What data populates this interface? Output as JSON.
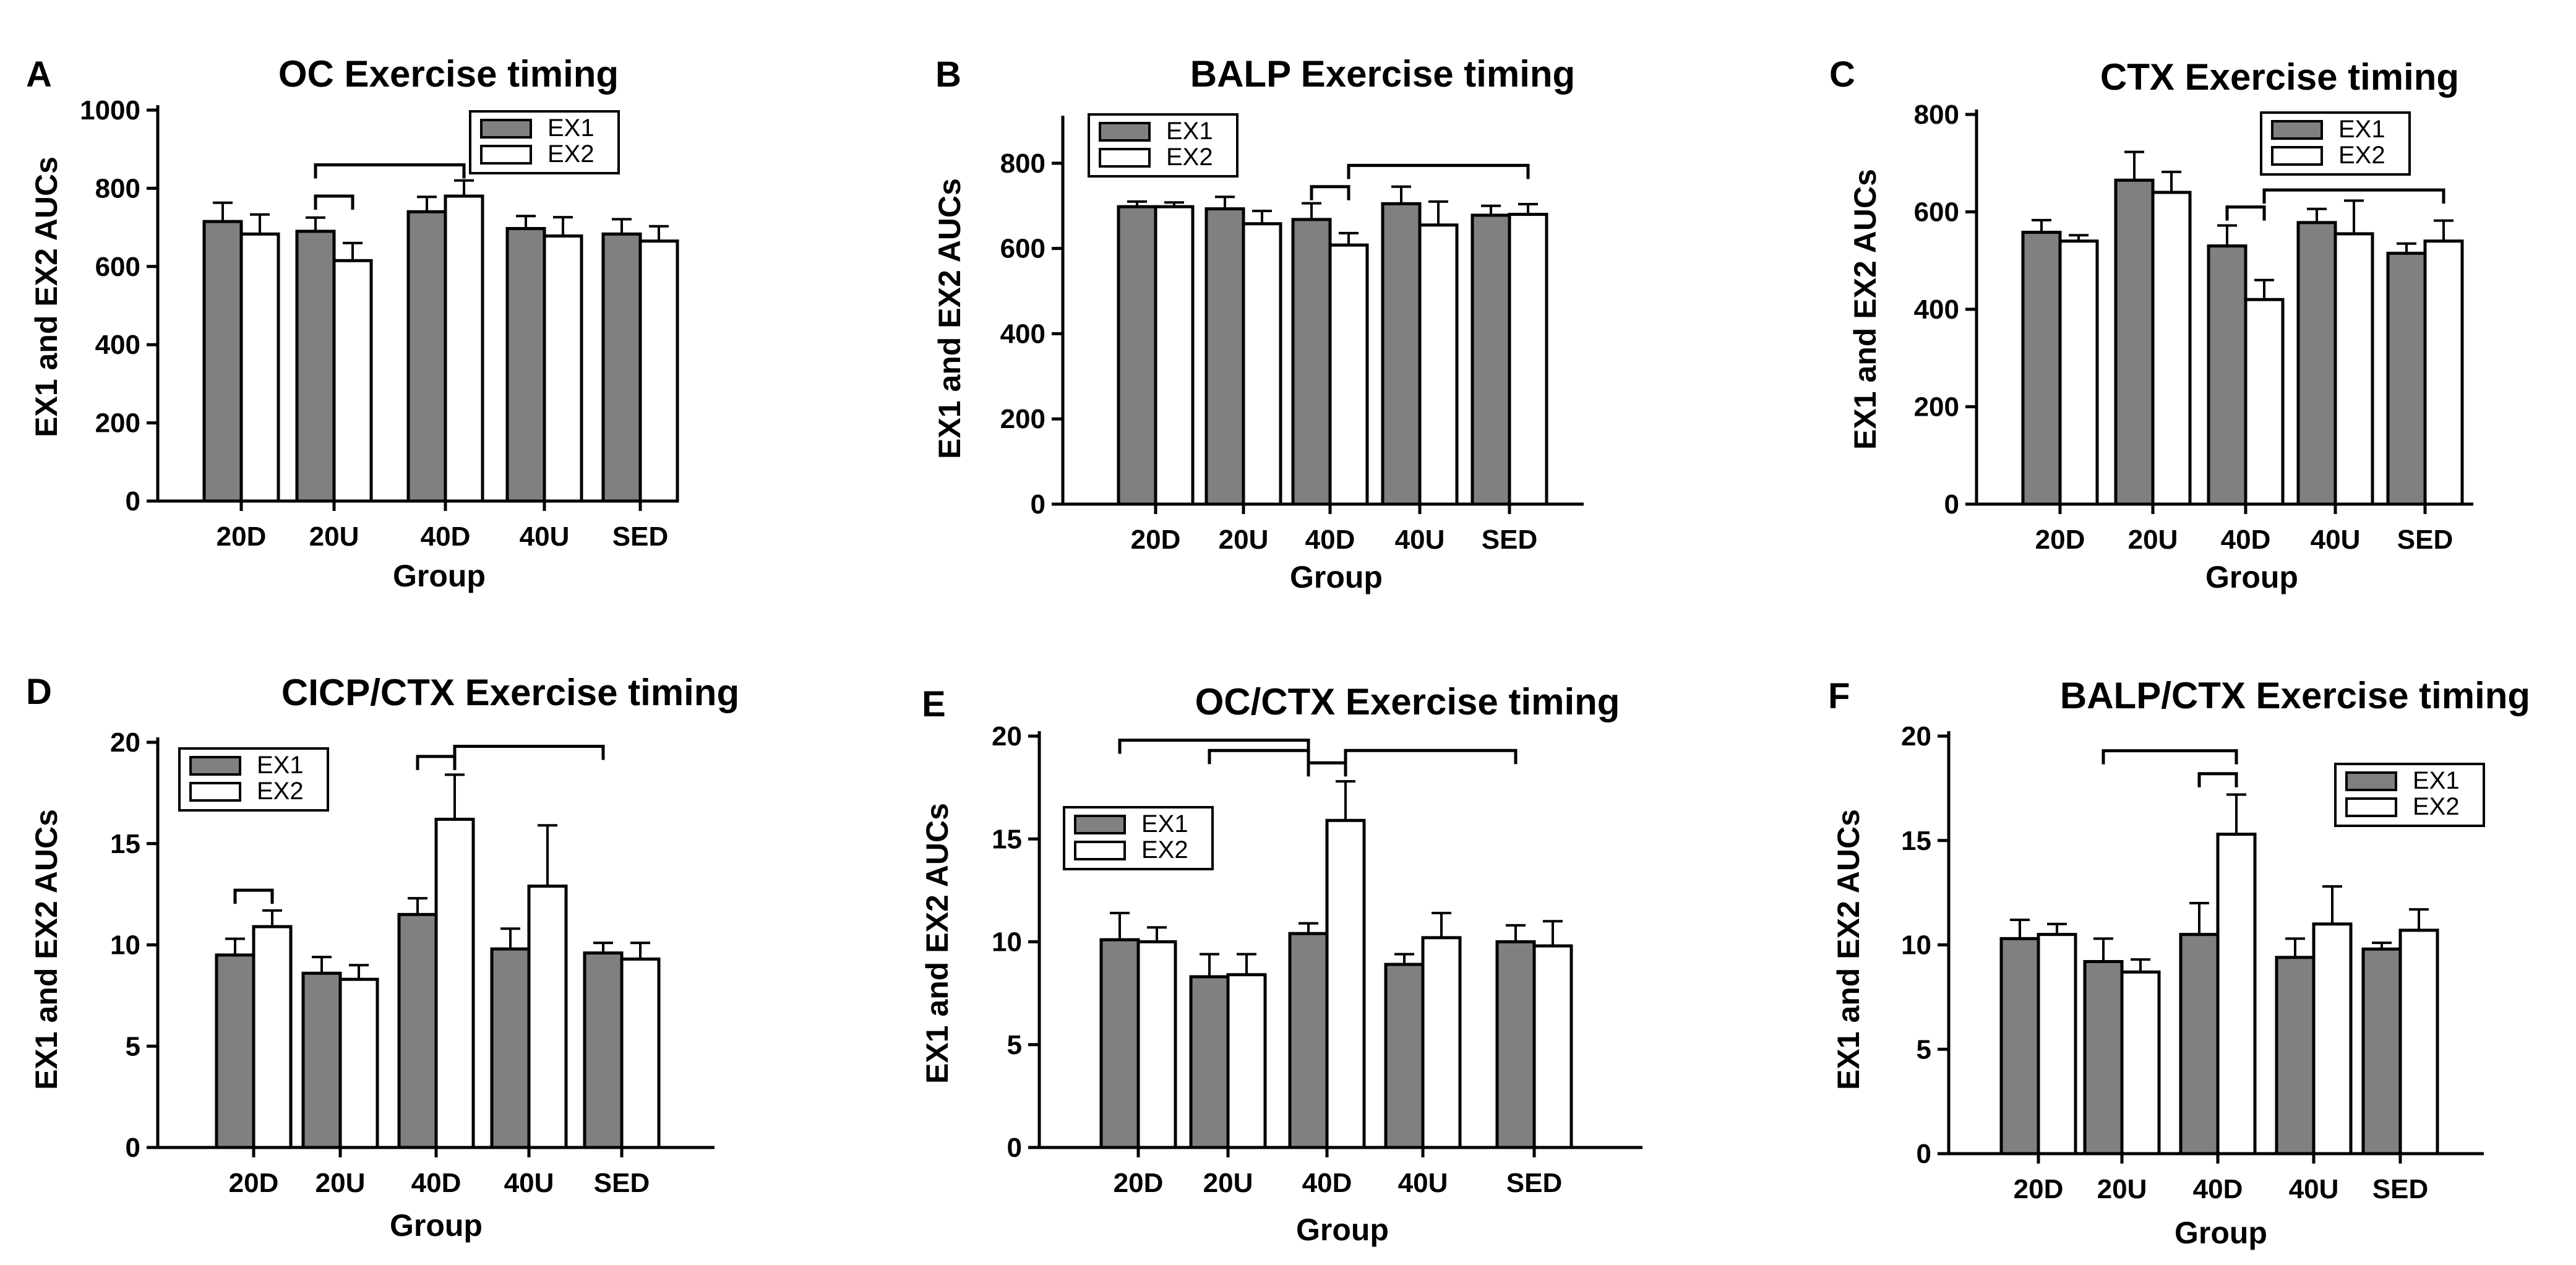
{
  "colors": {
    "ex1_fill": "#808080",
    "ex2_fill": "#ffffff",
    "stroke": "#000000"
  },
  "chart_data": [
    {
      "panel": "A",
      "type": "bar",
      "title": "OC Exercise timing",
      "xlabel": "Group",
      "ylabel": "EX1 and EX2 AUCs",
      "categories": [
        "20D",
        "20U",
        "40D",
        "40U",
        "SED"
      ],
      "ylim": [
        0,
        1000
      ],
      "yticks": [
        0,
        200,
        400,
        600,
        800,
        1000
      ],
      "series": [
        {
          "name": "EX1",
          "values": [
            715,
            690,
            740,
            697,
            683
          ],
          "errors": [
            48,
            35,
            38,
            32,
            38
          ]
        },
        {
          "name": "EX2",
          "values": [
            683,
            615,
            780,
            678,
            665
          ],
          "errors": [
            50,
            45,
            40,
            48,
            38
          ]
        }
      ],
      "brackets": [
        {
          "from": [
            1,
            0
          ],
          "to": [
            1,
            1
          ],
          "y": 780
        },
        {
          "from": [
            1,
            0
          ],
          "to": [
            2,
            1
          ],
          "y": 860
        }
      ],
      "legend_position": "top-right"
    },
    {
      "panel": "B",
      "type": "bar",
      "title": "BALP  Exercise timing",
      "xlabel": "Group",
      "ylabel": "EX1 and EX2 AUCs",
      "categories": [
        "20D",
        "20U",
        "40D",
        "40U",
        "SED"
      ],
      "ylim": [
        0,
        900
      ],
      "yticks": [
        0,
        200,
        400,
        600,
        800
      ],
      "series": [
        {
          "name": "EX1",
          "values": [
            698,
            693,
            668,
            705,
            678
          ],
          "errors": [
            12,
            28,
            38,
            40,
            22
          ]
        },
        {
          "name": "EX2",
          "values": [
            698,
            658,
            608,
            655,
            680
          ],
          "errors": [
            10,
            30,
            28,
            55,
            24
          ]
        }
      ],
      "brackets": [
        {
          "from": [
            2,
            0
          ],
          "to": [
            2,
            1
          ],
          "y": 745
        },
        {
          "from": [
            2,
            1
          ],
          "to": [
            4,
            1
          ],
          "y": 795
        }
      ],
      "legend_position": "top-left"
    },
    {
      "panel": "C",
      "type": "bar",
      "title": "CTX Exercise timing",
      "xlabel": "Group",
      "ylabel": "EX1 and EX2 AUCs",
      "categories": [
        "20D",
        "20U",
        "40D",
        "40U",
        "SED"
      ],
      "ylim": [
        0,
        800
      ],
      "yticks": [
        0,
        200,
        400,
        600,
        800
      ],
      "series": [
        {
          "name": "EX1",
          "values": [
            558,
            665,
            530,
            578,
            515
          ],
          "errors": [
            25,
            58,
            42,
            28,
            20
          ]
        },
        {
          "name": "EX2",
          "values": [
            540,
            640,
            420,
            555,
            540
          ],
          "errors": [
            12,
            42,
            40,
            68,
            42
          ]
        }
      ],
      "brackets": [
        {
          "from": [
            2,
            0
          ],
          "to": [
            2,
            1
          ],
          "y": 610
        },
        {
          "from": [
            2,
            1
          ],
          "to": [
            4,
            1
          ],
          "y": 645
        }
      ],
      "legend_position": "top-right"
    },
    {
      "panel": "D",
      "type": "bar",
      "title": "CICP/CTX Exercise timing",
      "xlabel": "Group",
      "ylabel": "EX1 and EX2 AUCs",
      "categories": [
        "20D",
        "20U",
        "40D",
        "40U",
        "SED"
      ],
      "ylim": [
        0,
        20
      ],
      "yticks": [
        0,
        5,
        10,
        15,
        20
      ],
      "series": [
        {
          "name": "EX1",
          "values": [
            9.5,
            8.6,
            11.5,
            9.8,
            9.6
          ],
          "errors": [
            0.8,
            0.8,
            0.8,
            1.0,
            0.5
          ]
        },
        {
          "name": "EX2",
          "values": [
            10.9,
            8.3,
            16.2,
            12.9,
            9.3
          ],
          "errors": [
            0.8,
            0.7,
            2.2,
            3.0,
            0.8
          ]
        }
      ],
      "brackets": [
        {
          "from": [
            0,
            0
          ],
          "to": [
            0,
            1
          ],
          "y": 12.7
        },
        {
          "from": [
            2,
            0
          ],
          "to": [
            2,
            1
          ],
          "y": 19.3
        },
        {
          "from": [
            2,
            1
          ],
          "to": [
            4,
            0
          ],
          "y": 19.8
        }
      ],
      "legend_position": "top-left"
    },
    {
      "panel": "E",
      "type": "bar",
      "title": "OC/CTX Exercise timing",
      "xlabel": "Group",
      "ylabel": "EX1 and EX2 AUCs",
      "categories": [
        "20D",
        "20U",
        "40D",
        "40U",
        "SED"
      ],
      "ylim": [
        0,
        20
      ],
      "yticks": [
        0,
        5,
        10,
        15,
        20
      ],
      "series": [
        {
          "name": "EX1",
          "values": [
            10.1,
            8.3,
            10.4,
            8.9,
            10.0
          ],
          "errors": [
            1.3,
            1.1,
            0.5,
            0.5,
            0.8
          ]
        },
        {
          "name": "EX2",
          "values": [
            10.0,
            8.4,
            15.9,
            10.2,
            9.8
          ],
          "errors": [
            0.7,
            1.0,
            1.9,
            1.2,
            1.2
          ]
        }
      ],
      "brackets": [
        {
          "from": [
            0,
            0
          ],
          "to": [
            2,
            0
          ],
          "y": 19.8
        },
        {
          "from": [
            1,
            0
          ],
          "to": [
            2,
            0
          ],
          "y": 19.3
        },
        {
          "from": [
            2,
            0
          ],
          "to": [
            2,
            1
          ],
          "y": 18.7
        },
        {
          "from": [
            2,
            1
          ],
          "to": [
            4,
            0
          ],
          "y": 19.3
        }
      ],
      "legend_position": "middle-left"
    },
    {
      "panel": "F",
      "type": "bar",
      "title": "BALP/CTX Exercise timing",
      "xlabel": "Group",
      "ylabel": "EX1 and EX2 AUCs",
      "categories": [
        "20D",
        "20U",
        "40D",
        "40U",
        "SED"
      ],
      "ylim": [
        0,
        20
      ],
      "yticks": [
        0,
        5,
        10,
        15,
        20
      ],
      "series": [
        {
          "name": "EX1",
          "values": [
            10.3,
            9.2,
            10.5,
            9.4,
            9.8
          ],
          "errors": [
            0.9,
            1.1,
            1.5,
            0.9,
            0.3
          ]
        },
        {
          "name": "EX2",
          "values": [
            10.5,
            8.7,
            15.3,
            11.0,
            10.7
          ],
          "errors": [
            0.5,
            0.6,
            1.9,
            1.8,
            1.0
          ]
        }
      ],
      "brackets": [
        {
          "from": [
            1,
            0
          ],
          "to": [
            2,
            1
          ],
          "y": 19.3
        },
        {
          "from": [
            2,
            0
          ],
          "to": [
            2,
            1
          ],
          "y": 18.2
        }
      ],
      "legend_position": "top-right"
    }
  ]
}
